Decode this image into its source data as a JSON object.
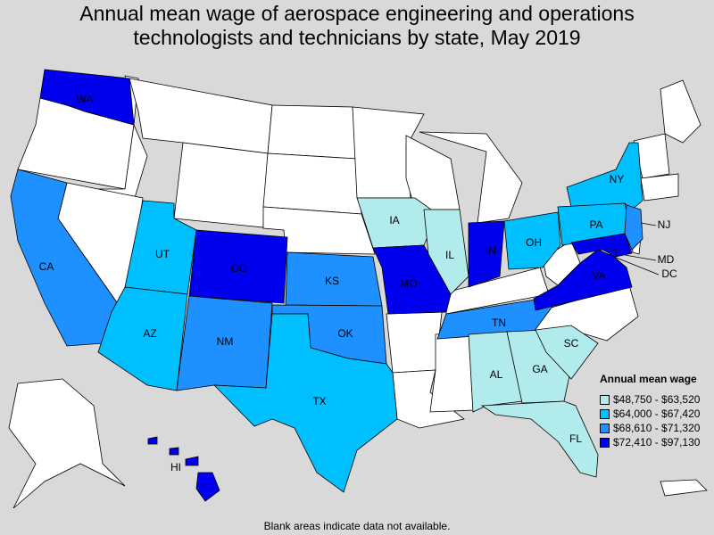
{
  "title": {
    "line1": "Annual mean wage of aerospace engineering and operations",
    "line2": "technologists and technicians by state, May 2019"
  },
  "legend": {
    "title": "Annual mean wage",
    "bins": [
      {
        "label": "$48,750 - $63,520",
        "color": "#b2ebeb"
      },
      {
        "label": "$64,000 - $67,420",
        "color": "#00bfff"
      },
      {
        "label": "$68,610 - $71,320",
        "color": "#1e90ff"
      },
      {
        "label": "$72,410 - $97,130",
        "color": "#0000ee"
      }
    ],
    "no_data_color": "#ffffff"
  },
  "footnote": "Blank areas indicate data not available.",
  "states": {
    "WA": {
      "label": "WA",
      "bin": 3
    },
    "CA": {
      "label": "CA",
      "bin": 2
    },
    "UT": {
      "label": "UT",
      "bin": 1
    },
    "AZ": {
      "label": "AZ",
      "bin": 1
    },
    "CO": {
      "label": "CO",
      "bin": 3
    },
    "NM": {
      "label": "NM",
      "bin": 2
    },
    "KS": {
      "label": "KS",
      "bin": 2
    },
    "OK": {
      "label": "OK",
      "bin": 2
    },
    "TX": {
      "label": "TX",
      "bin": 1
    },
    "IA": {
      "label": "IA",
      "bin": 0
    },
    "MO": {
      "label": "MO",
      "bin": 3
    },
    "IL": {
      "label": "IL",
      "bin": 0
    },
    "IN": {
      "label": "IN",
      "bin": 3
    },
    "OH": {
      "label": "OH",
      "bin": 1
    },
    "TN": {
      "label": "TN",
      "bin": 2
    },
    "AL": {
      "label": "AL",
      "bin": 0
    },
    "GA": {
      "label": "GA",
      "bin": 0
    },
    "SC": {
      "label": "SC",
      "bin": 0
    },
    "FL": {
      "label": "FL",
      "bin": 0
    },
    "NY": {
      "label": "NY",
      "bin": 1
    },
    "PA": {
      "label": "PA",
      "bin": 1
    },
    "NJ": {
      "label": "NJ",
      "bin": 2
    },
    "MD": {
      "label": "MD",
      "bin": 3
    },
    "DC": {
      "label": "DC",
      "bin": 3
    },
    "VA": {
      "label": "VA",
      "bin": 3
    },
    "HI": {
      "label": "HI",
      "bin": 3
    }
  }
}
